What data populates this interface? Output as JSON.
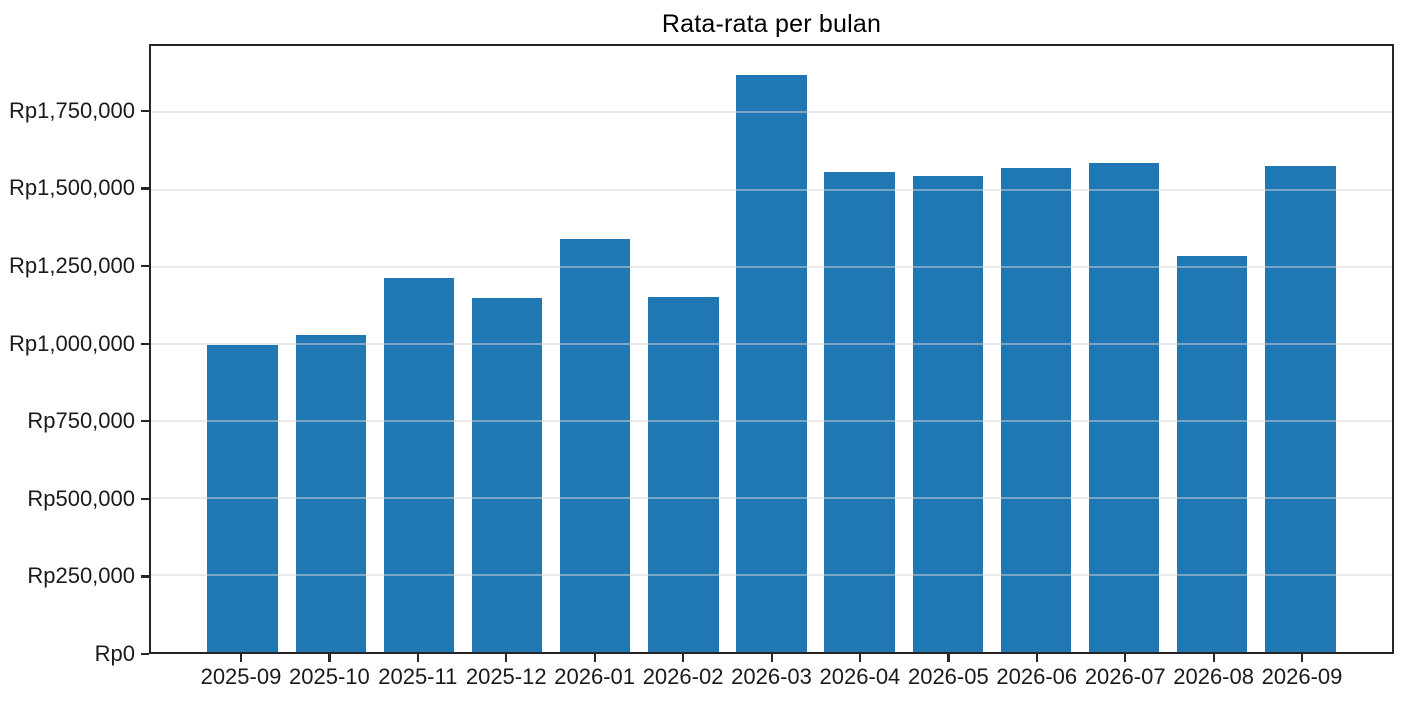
{
  "chart_data": {
    "type": "bar",
    "title": "Rata-rata per bulan",
    "categories": [
      "2025-09",
      "2025-10",
      "2025-11",
      "2025-12",
      "2026-01",
      "2026-02",
      "2026-03",
      "2026-04",
      "2026-05",
      "2026-06",
      "2026-07",
      "2026-08",
      "2026-09"
    ],
    "values": [
      995000,
      1029000,
      1213000,
      1149000,
      1339000,
      1153000,
      1872000,
      1557000,
      1543000,
      1569000,
      1585000,
      1284000,
      1577000
    ],
    "xlabel": "",
    "ylabel": "",
    "ylim": [
      0,
      1965600
    ],
    "y_tick_values": [
      0,
      250000,
      500000,
      750000,
      1000000,
      1250000,
      1500000,
      1750000
    ],
    "y_tick_labels": [
      "Rp0",
      "Rp250,000",
      "Rp500,000",
      "Rp750,000",
      "Rp1,000,000",
      "Rp1,250,000",
      "Rp1,500,000",
      "Rp1,750,000"
    ],
    "currency_prefix": "Rp",
    "grid": "horizontal",
    "legend": "none",
    "bar_color": "#1f77b4"
  },
  "colors": {
    "bar": "#1f77b4",
    "gridline": "rgba(214,214,214,0.5)",
    "spine": "#262626",
    "tick_text": "#1a1a1a"
  }
}
